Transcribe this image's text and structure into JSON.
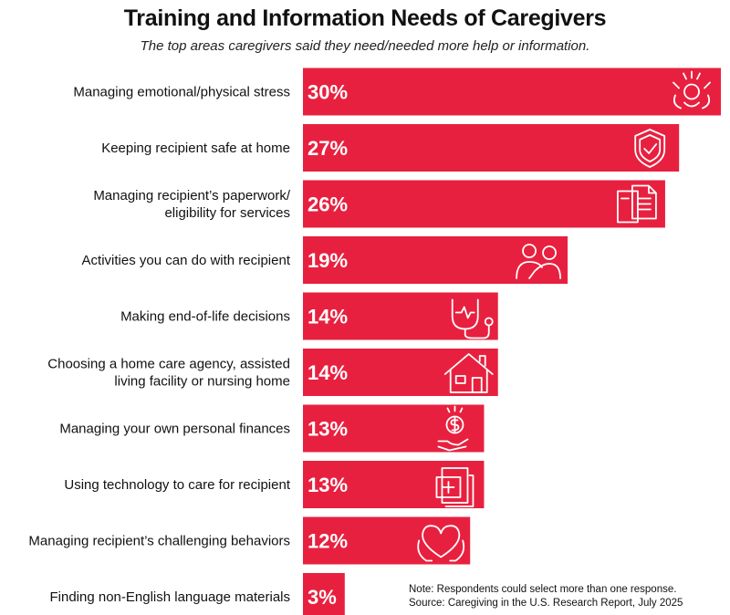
{
  "title": "Training and Information Needs of Caregivers",
  "subtitle": "The top areas caregivers said they need/needed more help or information.",
  "note_line1": "Note: Respondents could select more than one response.",
  "note_line2": "Source: Caregiving in the U.S. Research Report, July 2025",
  "colors": {
    "bar": "#E8203F",
    "icon": "#ffffff"
  },
  "chart_data": {
    "type": "bar",
    "orientation": "horizontal",
    "xlim": [
      0,
      30
    ],
    "grid": false,
    "categories": [
      [
        "Managing emotional/physical stress"
      ],
      [
        "Keeping recipient safe at home"
      ],
      [
        "Managing recipient’s paperwork/",
        "eligibility for services"
      ],
      [
        "Activities you can do with recipient"
      ],
      [
        "Making end-of-life decisions"
      ],
      [
        "Choosing a home care agency, assisted",
        "living facility or nursing home"
      ],
      [
        "Managing your own personal finances"
      ],
      [
        "Using technology to care for recipient"
      ],
      [
        "Managing recipient’s challenging behaviors"
      ],
      [
        "Finding non-English language materials"
      ]
    ],
    "values": [
      30,
      27,
      26,
      19,
      14,
      14,
      13,
      13,
      12,
      3
    ],
    "value_labels": [
      "30%",
      "27%",
      "26%",
      "19%",
      "14%",
      "14%",
      "13%",
      "13%",
      "12%",
      "3%"
    ],
    "icons": [
      "stress-icon",
      "shield-check-icon",
      "documents-icon",
      "people-hug-icon",
      "stethoscope-icon",
      "house-icon",
      "money-hand-icon",
      "tablet-medical-icon",
      "heart-hands-icon",
      ""
    ]
  }
}
